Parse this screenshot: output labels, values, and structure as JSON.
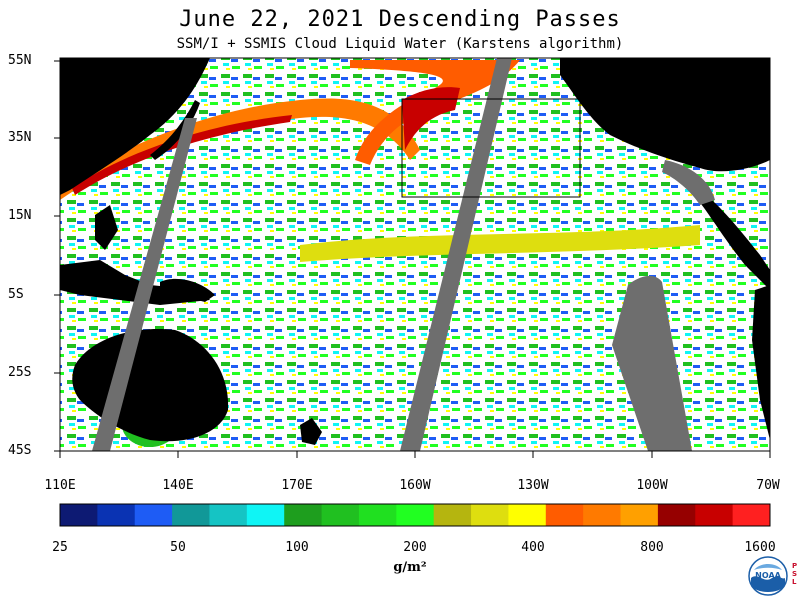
{
  "title": "June 22, 2021  Descending Passes",
  "subtitle": "SSM/I + SSMIS Cloud Liquid Water (Karstens algorithm)",
  "map": {
    "lat_labels": [
      "55N",
      "35N",
      "15N",
      "5S",
      "25S",
      "45S"
    ],
    "lon_labels": [
      "110E",
      "140E",
      "170E",
      "160W",
      "130W",
      "100W",
      "70W"
    ],
    "land_color": "#000000",
    "no_data_color": "#6e6e6e",
    "clear_color": "#ffffff"
  },
  "colorbar": {
    "colors": [
      "#0d1a73",
      "#0a33b3",
      "#1e5cf5",
      "#119898",
      "#15c4c4",
      "#0ff5f5",
      "#1e9e1e",
      "#20c020",
      "#20e020",
      "#21ff21",
      "#b5b50f",
      "#dede0f",
      "#ffff00",
      "#ff5c00",
      "#ff7a00",
      "#ffa000",
      "#960000",
      "#c80000",
      "#ff2020"
    ],
    "tick_labels": [
      "25",
      "50",
      "100",
      "200",
      "400",
      "800",
      "1600"
    ],
    "unit": "g/m²"
  },
  "logo": {
    "text": "NOAA",
    "side_letters": [
      "P",
      "S",
      "L"
    ]
  }
}
